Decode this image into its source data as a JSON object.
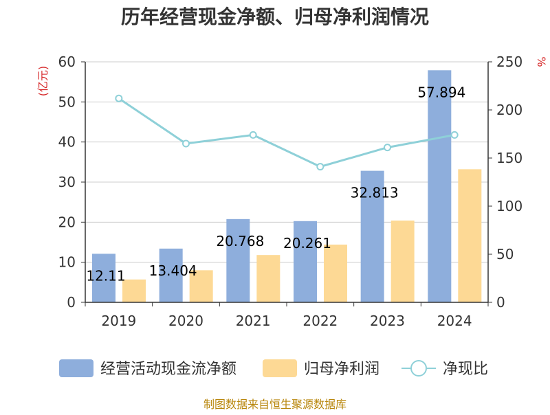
{
  "title": "历年经营现金净额、归母净利润情况",
  "footer": "制图数据来自恒生聚源数据库",
  "colors": {
    "ocf": "#8eaedc",
    "profit": "#fdd995",
    "ratio": "#8ed0d8"
  },
  "chart_data": {
    "type": "bar",
    "categories": [
      "2019",
      "2020",
      "2021",
      "2022",
      "2023",
      "2024"
    ],
    "y_left": {
      "unit": "(亿元)",
      "min": 0,
      "max": 60,
      "ticks": [
        0,
        10,
        20,
        30,
        40,
        50,
        60
      ]
    },
    "y_right": {
      "unit": "%",
      "min": 0,
      "max": 250,
      "ticks": [
        0,
        50,
        100,
        150,
        200,
        250
      ]
    },
    "series": [
      {
        "name": "经营活动现金流净额",
        "type": "bar",
        "axis": "left",
        "values": [
          12.11,
          13.404,
          20.768,
          20.261,
          32.813,
          57.894
        ],
        "labels": [
          "12.11",
          "13.404",
          "20.768",
          "20.261",
          "32.813",
          "57.894"
        ]
      },
      {
        "name": "归母净利润",
        "type": "bar",
        "axis": "left",
        "values": [
          5.7,
          8.0,
          11.8,
          14.4,
          20.4,
          33.2
        ]
      },
      {
        "name": "净现比",
        "type": "line",
        "axis": "right",
        "values": [
          212,
          165,
          174,
          141,
          161,
          174
        ]
      }
    ],
    "grid": true,
    "legend": "bottom"
  }
}
